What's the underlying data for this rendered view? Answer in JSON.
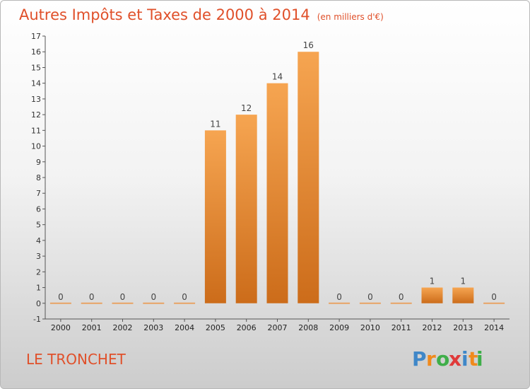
{
  "chart_data": {
    "type": "bar",
    "title": "Autres Impôts et Taxes de 2000 à 2014",
    "subtitle": "(en milliers d'€)",
    "categories": [
      "2000",
      "2001",
      "2002",
      "2003",
      "2004",
      "2005",
      "2006",
      "2007",
      "2008",
      "2009",
      "2010",
      "2011",
      "2012",
      "2013",
      "2014"
    ],
    "values": [
      0,
      0,
      0,
      0,
      0,
      11,
      12,
      14,
      16,
      0,
      0,
      0,
      1,
      1,
      0
    ],
    "data_labels": [
      "0",
      "0",
      "0",
      "0",
      "0",
      "11",
      "12",
      "14",
      "16",
      "0",
      "0",
      "0",
      "1",
      "1",
      "0"
    ],
    "ylim": [
      -1,
      17
    ],
    "yticks": [
      "-1",
      "0",
      "1",
      "2",
      "3",
      "4",
      "5",
      "6",
      "7",
      "8",
      "9",
      "10",
      "11",
      "12",
      "13",
      "14",
      "15",
      "16",
      "17"
    ],
    "grid": false,
    "bar_color": "#f0922f",
    "title_color": "#e0502a"
  },
  "place_label": "LE TRONCHET",
  "brand": {
    "name": "Proxiti",
    "letters": [
      "P",
      "r",
      "o",
      "x",
      "i",
      "t",
      "i"
    ],
    "colors": [
      "#3f87c8",
      "#f08a1c",
      "#3fae49",
      "#e03a3a",
      "#3f87c8",
      "#f08a1c",
      "#3fae49"
    ]
  }
}
